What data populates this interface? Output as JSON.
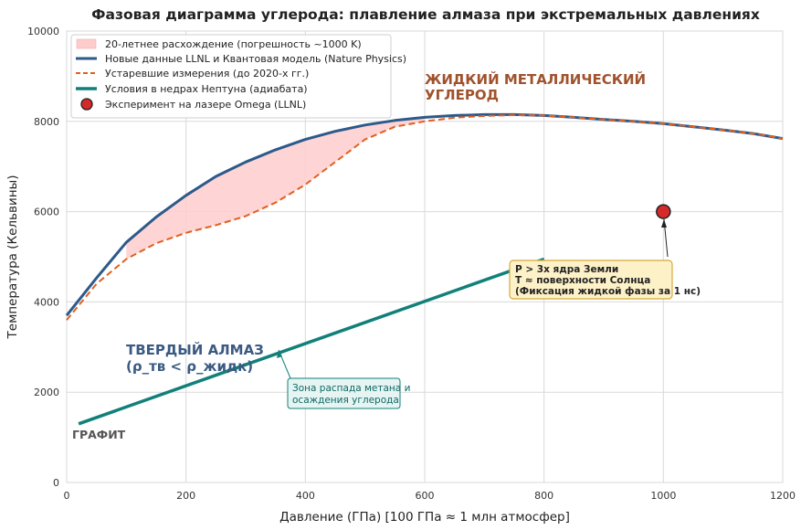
{
  "chart_data": {
    "type": "line",
    "title": "Фазовая диаграмма углерода: плавление алмаза при экстремальных давлениях",
    "xlabel": "Давление (ГПа) [100 ГПа ≈ 1 млн атмосфер]",
    "ylabel": "Температура (Кельвины)",
    "xlim": [
      0,
      1200
    ],
    "ylim": [
      0,
      10000
    ],
    "xticks": [
      0,
      200,
      400,
      600,
      800,
      1000,
      1200
    ],
    "yticks": [
      0,
      2000,
      4000,
      6000,
      8000,
      10000
    ],
    "grid": true,
    "legend_position": "top-left",
    "legend": [
      {
        "key": "band",
        "label": "20-летнее расхождение (погрешность ~1000 K)"
      },
      {
        "key": "new",
        "label": "Новые данные LLNL и Квантовая модель (Nature Physics)"
      },
      {
        "key": "old",
        "label": "Устаревшие измерения (до 2020-х гг.)"
      },
      {
        "key": "neptune",
        "label": "Условия в недрах Нептуна (адиабата)"
      },
      {
        "key": "omega",
        "label": "Эксперимент на лазере Omega (LLNL)"
      }
    ],
    "series": [
      {
        "key": "new",
        "color": "#2c5a8a",
        "x": [
          0,
          50,
          100,
          150,
          200,
          250,
          300,
          350,
          400,
          450,
          500,
          550,
          600,
          650,
          700,
          750,
          800,
          850,
          900,
          950,
          1000,
          1050,
          1100,
          1150,
          1200
        ],
        "y": [
          3700,
          4530,
          5320,
          5880,
          6360,
          6780,
          7100,
          7370,
          7600,
          7780,
          7920,
          8020,
          8090,
          8130,
          8150,
          8150,
          8130,
          8090,
          8040,
          8000,
          7950,
          7880,
          7810,
          7730,
          7620
        ]
      },
      {
        "key": "old",
        "color": "#e06020",
        "x": [
          0,
          50,
          100,
          150,
          200,
          250,
          300,
          350,
          400,
          450,
          500,
          550,
          600,
          650,
          700,
          750,
          800,
          850,
          900,
          950,
          1000,
          1050,
          1100,
          1150,
          1200
        ],
        "y": [
          3600,
          4400,
          4950,
          5300,
          5530,
          5700,
          5900,
          6200,
          6600,
          7100,
          7600,
          7880,
          8000,
          8080,
          8120,
          8140,
          8130,
          8090,
          8040,
          8000,
          7950,
          7880,
          7810,
          7730,
          7620
        ]
      },
      {
        "key": "neptune",
        "color": "#12807a",
        "x": [
          20,
          800
        ],
        "y": [
          1300,
          4950
        ]
      }
    ],
    "band": {
      "key": "band",
      "color": "#ffcccc",
      "x_from": 100,
      "x_to": 600
    },
    "points": [
      {
        "key": "omega",
        "x": 1000,
        "y": 6000,
        "color": "#d42a2a"
      }
    ],
    "annotations": {
      "liquid_line1": "ЖИДКИЙ МЕТАЛЛИЧЕСКИЙ",
      "liquid_line2": "УГЛЕРОД",
      "solid_line1": "ТВЕРДЫЙ АЛМАЗ",
      "solid_line2": "(ρ_тв < ρ_жидк)",
      "graphite": "ГРАФИТ",
      "methane_line1": "Зона распада метана и",
      "methane_line2": "осаждения углерода",
      "earth_line1": "P > 3x ядра Земли",
      "earth_line2": "T ≈ поверхности Солнца",
      "earth_line3": "(Фиксация жидкой фазы за 1 нс)"
    }
  }
}
